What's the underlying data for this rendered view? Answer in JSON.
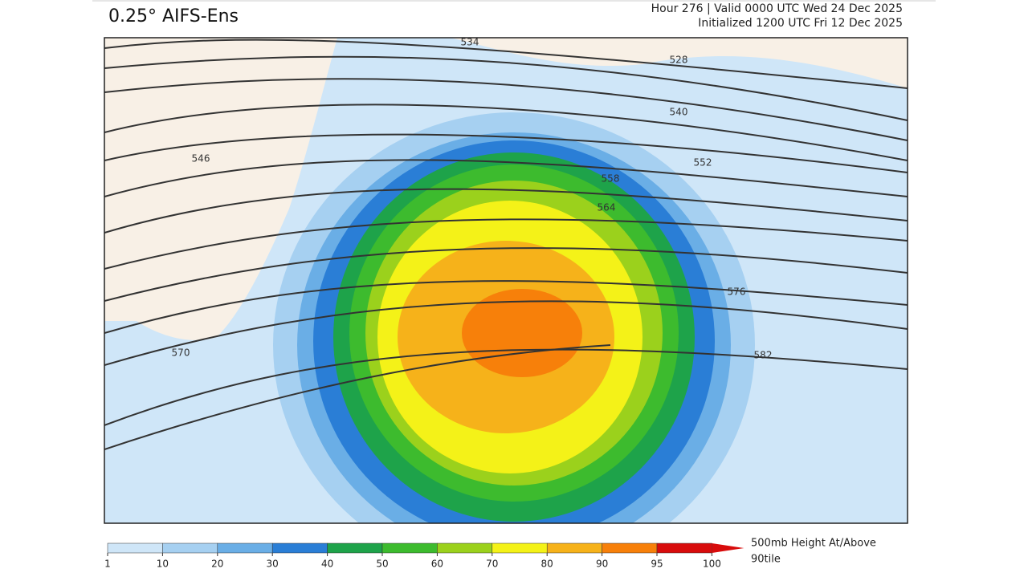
{
  "header": {
    "title": "0.25° AIFS-Ens",
    "valid": "Hour 276 | Valid 0000 UTC Wed 24 Dec 2025",
    "init": "Initialized 1200 UTC Fri 12 Dec 2025"
  },
  "map": {
    "contour_labels": [
      534,
      528,
      540,
      546,
      552,
      558,
      564,
      570,
      576,
      582
    ]
  },
  "colorbar": {
    "label_lines": [
      "500mb Height At/Above",
      "90tile"
    ],
    "ticks": [
      1,
      10,
      20,
      30,
      40,
      50,
      60,
      70,
      80,
      90,
      95,
      100
    ],
    "colors": [
      "#cfe6f8",
      "#a6d0f1",
      "#6aaee6",
      "#2a7ed6",
      "#1ea34a",
      "#3dbb2e",
      "#9bd11c",
      "#f4f218",
      "#f6b21a",
      "#f7800a",
      "#d80c0c"
    ]
  }
}
